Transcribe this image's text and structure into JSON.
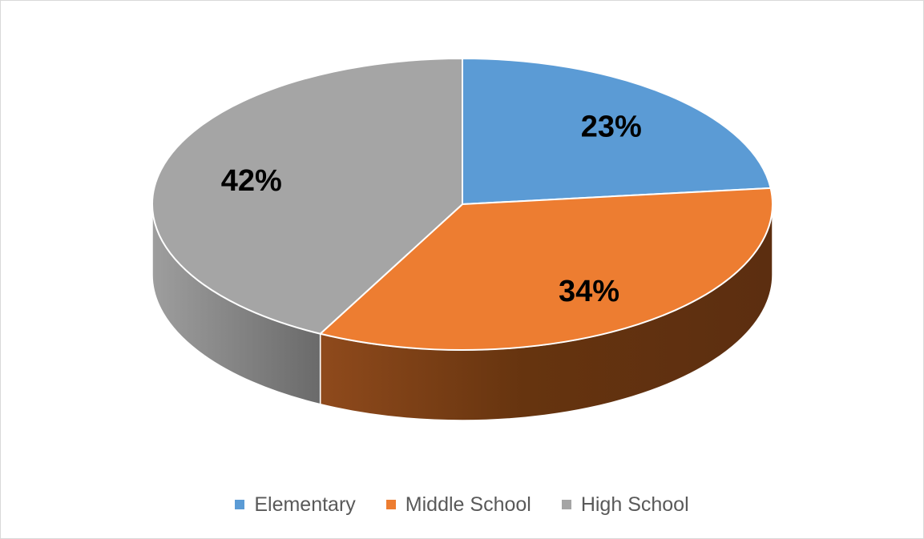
{
  "chart_data": {
    "type": "pie",
    "style": "3d",
    "categories": [
      "Elementary",
      "Middle School",
      "High School"
    ],
    "values": [
      23,
      34,
      42
    ],
    "labels": [
      "23%",
      "34%",
      "42%"
    ],
    "colors": [
      "#5b9bd5",
      "#ed7d31",
      "#a5a5a5"
    ],
    "side_colors": [
      "#3d6a94",
      "#5c2e10",
      "#6b6b6b"
    ],
    "legend_position": "bottom",
    "title": ""
  }
}
